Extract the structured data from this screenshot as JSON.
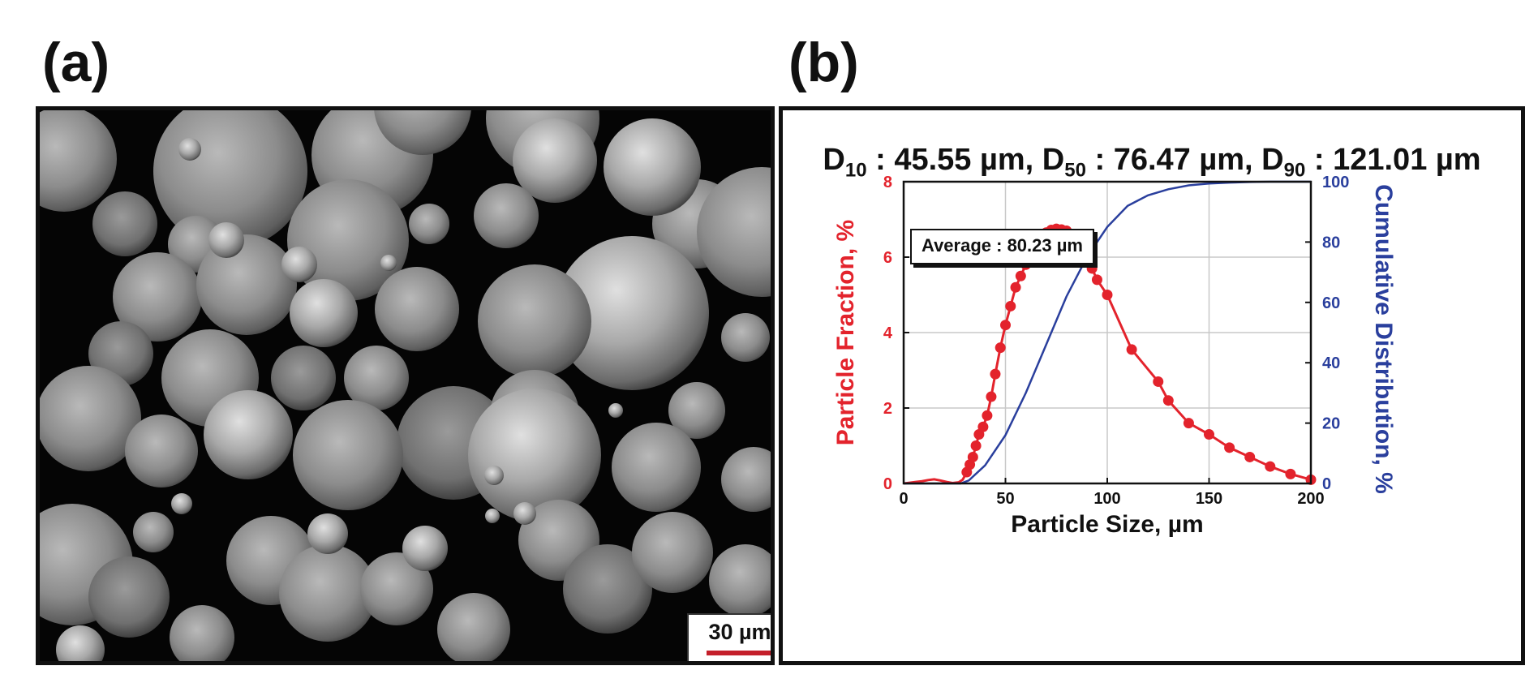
{
  "figure": {
    "panel_a_label": "(a)",
    "panel_b_label": "(b)"
  },
  "sem": {
    "scale_bar_label": "30 µm",
    "scale_bar_color": "#c41f2a"
  },
  "stats": {
    "d10_label": "D",
    "d10_sub": "10",
    "d10_value": " : 45.55 µm, ",
    "d50_label": "D",
    "d50_sub": "50",
    "d50_value": " : 76.47 µm, ",
    "d90_label": "D",
    "d90_sub": "90",
    "d90_value": " : 121.01 µm"
  },
  "chart_data": {
    "type": "line",
    "xlabel": "Particle Size, µm",
    "ylabel_left": "Particle Fraction, %",
    "ylabel_right": "Cumulative Distribution, %",
    "annotation": "Average : 80.23 µm",
    "xlim": [
      0,
      200
    ],
    "ylim_left": [
      0,
      8
    ],
    "ylim_right": [
      0,
      100
    ],
    "x_ticks": [
      0,
      50,
      100,
      150,
      200
    ],
    "y_left_ticks": [
      0,
      2,
      4,
      6,
      8
    ],
    "y_right_ticks": [
      0,
      20,
      40,
      60,
      80,
      100
    ],
    "grid": true,
    "colors": {
      "fraction": "#e3232c",
      "cumulative": "#2a3f9d"
    },
    "series": [
      {
        "axis": "left",
        "style": "line-markers",
        "x": [
          0,
          3,
          6,
          9,
          12,
          15,
          18,
          21,
          24,
          27,
          29,
          31,
          32.5,
          34,
          35.5,
          37,
          39,
          41,
          43,
          45,
          47.5,
          50,
          52.5,
          55,
          57.5,
          60,
          62.5,
          65,
          67.5,
          70,
          72.5,
          75,
          77.5,
          80,
          82.5,
          85,
          87.5,
          90,
          92.5,
          95,
          100,
          112,
          125,
          130,
          140,
          150,
          160,
          170,
          180,
          190,
          200
        ],
        "y": [
          0.0,
          0.02,
          0.04,
          0.06,
          0.09,
          0.11,
          0.08,
          0.04,
          0.01,
          0.03,
          0.1,
          0.3,
          0.5,
          0.7,
          1.0,
          1.3,
          1.5,
          1.8,
          2.3,
          2.9,
          3.6,
          4.2,
          4.7,
          5.2,
          5.5,
          5.8,
          6.1,
          6.35,
          6.5,
          6.65,
          6.72,
          6.75,
          6.73,
          6.7,
          6.6,
          6.45,
          6.25,
          6.0,
          5.7,
          5.4,
          5.0,
          3.55,
          2.7,
          2.2,
          1.6,
          1.3,
          0.95,
          0.7,
          0.45,
          0.25,
          0.1
        ]
      },
      {
        "axis": "right",
        "style": "line",
        "x": [
          0,
          28,
          32,
          40,
          50,
          60,
          70,
          80,
          90,
          100,
          110,
          120,
          130,
          140,
          150,
          160,
          170,
          180,
          190,
          200
        ],
        "y": [
          0,
          0,
          1,
          6,
          16,
          30,
          46,
          62,
          75,
          85,
          92,
          95.5,
          97.5,
          98.8,
          99.4,
          99.7,
          99.9,
          100,
          100,
          100
        ]
      }
    ]
  }
}
